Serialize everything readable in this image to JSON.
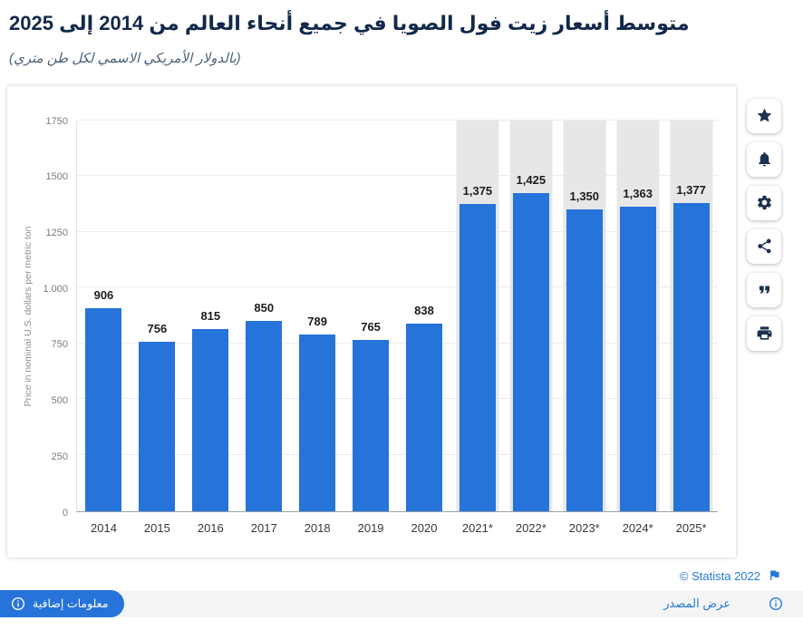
{
  "page": {
    "title": "متوسط أسعار زيت فول الصويا في جميع أنحاء العالم من 2014 إلى 2025",
    "subtitle": "(بالدولار الأمريكي الاسمي لكل طن متري)"
  },
  "chart_data": {
    "type": "bar",
    "title": "متوسط أسعار زيت فول الصويا في جميع أنحاء العالم من 2014 إلى 2025",
    "categories": [
      "2014",
      "2015",
      "2016",
      "2017",
      "2018",
      "2019",
      "2020",
      "2021*",
      "2022*",
      "2023*",
      "2024*",
      "2025*"
    ],
    "values": [
      906,
      756,
      815,
      850,
      789,
      765,
      838,
      1375,
      1425,
      1350,
      1363,
      1377
    ],
    "value_labels": [
      "906",
      "756",
      "815",
      "850",
      "789",
      "765",
      "838",
      "1,375",
      "1,425",
      "1,350",
      "1,363",
      "1,377"
    ],
    "forecast": [
      false,
      false,
      false,
      false,
      false,
      false,
      false,
      true,
      true,
      true,
      true,
      true
    ],
    "xlabel": "",
    "ylabel": "Price in nominal U.S. dollars per metric ton",
    "ylim": [
      0,
      1750
    ],
    "yticks": [
      0,
      250,
      500,
      750,
      1000,
      1250,
      1500,
      1750
    ],
    "ytick_labels": [
      "0",
      "250",
      "500",
      "750",
      "1.000",
      "1250",
      "1500",
      "1750"
    ],
    "grid": true,
    "legend": false,
    "bar_color": "#2673d9",
    "forecast_band_color": "#e7e7e7"
  },
  "toolbar": {
    "buttons": [
      {
        "name": "favorite",
        "icon": "star-icon"
      },
      {
        "name": "alert",
        "icon": "bell-icon"
      },
      {
        "name": "settings",
        "icon": "gear-icon"
      },
      {
        "name": "share",
        "icon": "share-icon"
      },
      {
        "name": "cite",
        "icon": "quote-icon"
      },
      {
        "name": "print",
        "icon": "printer-icon"
      }
    ]
  },
  "footer": {
    "copyright": "© Statista 2022",
    "show_source": "عرض المصدر",
    "additional_info": "معلومات إضافية"
  },
  "colors": {
    "accent_blue": "#2673d9",
    "link_blue": "#2379d6",
    "title_navy": "#12294b"
  }
}
